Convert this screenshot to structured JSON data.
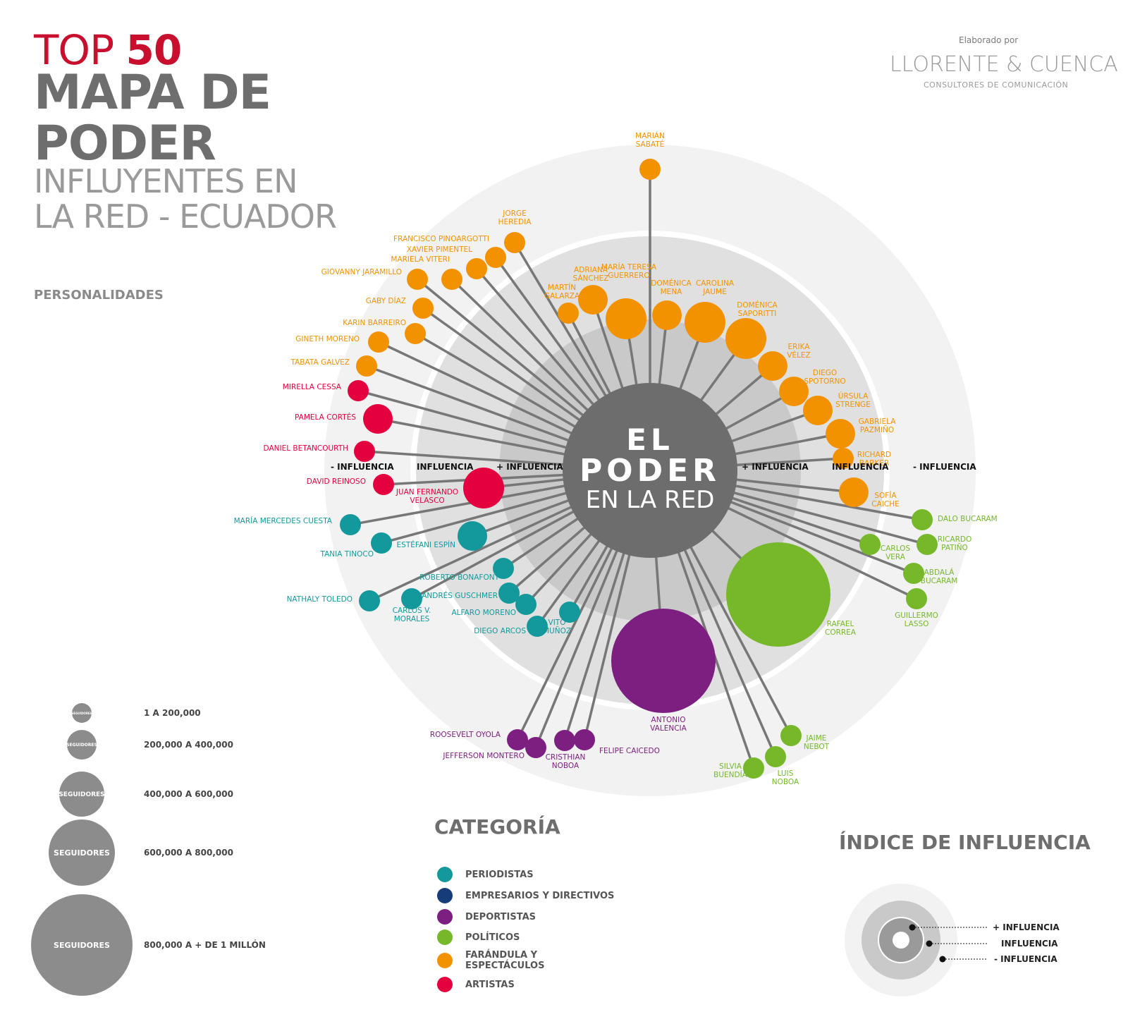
{
  "header": {
    "top_prefix": "TOP",
    "top_number": "50",
    "line1": "MAPA DE",
    "line2": "PODER",
    "line3": "INFLUYENTES EN",
    "line4": "LA RED - ECUADOR",
    "section": "PERSONALIDADES"
  },
  "brand": {
    "by": "Elaborado por",
    "name": "LLORENTE & CUENCA",
    "tagline": "CONSULTORES DE COMUNICACIÓN"
  },
  "center": {
    "line1": "EL",
    "line2": "PODER",
    "line3": "EN LA RED"
  },
  "ring_labels": {
    "left_outer": "- INFLUENCIA",
    "left_mid": "INFLUENCIA",
    "left_inner": "+ INFLUENCIA",
    "right_inner": "+ INFLUENCIA",
    "right_mid": "INFLUENCIA",
    "right_outer": "- INFLUENCIA"
  },
  "colors": {
    "periodistas": "#13999c",
    "empresarios": "#163d7a",
    "deportistas": "#7d1f80",
    "politicos": "#76b82a",
    "farandula": "#f39200",
    "artistas": "#e4003f",
    "ring_outer": "#f2f2f2",
    "ring_mid": "#e0e0e0",
    "ring_inner": "#c9c9c9",
    "center": "#6d6d6d",
    "line": "#777777"
  },
  "nodes": [
    {
      "name": "MARIÁN SABATÉ",
      "cat": "farandula",
      "size": 1
    },
    {
      "name": "JORGE HEREDIA",
      "cat": "farandula",
      "size": 1
    },
    {
      "name": "FRANCISCO PINOARGOTTI",
      "cat": "farandula",
      "size": 1
    },
    {
      "name": "XAVIER PIMENTEL",
      "cat": "farandula",
      "size": 1
    },
    {
      "name": "MARIELA VITERI",
      "cat": "farandula",
      "size": 1
    },
    {
      "name": "GIOVANNY JARAMILLO",
      "cat": "farandula",
      "size": 1
    },
    {
      "name": "GABY DÍAZ",
      "cat": "farandula",
      "size": 1
    },
    {
      "name": "KARIN BARREIRO",
      "cat": "farandula",
      "size": 1
    },
    {
      "name": "GINETH MORENO",
      "cat": "farandula",
      "size": 1
    },
    {
      "name": "TABATA GALVEZ",
      "cat": "farandula",
      "size": 1
    },
    {
      "name": "MARTÍN GALARZA",
      "cat": "farandula",
      "size": 1
    },
    {
      "name": "ADRIANA SÁNCHEZ",
      "cat": "farandula",
      "size": 2
    },
    {
      "name": "MARÍA TERESA GUERRERO",
      "cat": "farandula",
      "size": 3
    },
    {
      "name": "DOMÉNICA MENA",
      "cat": "farandula",
      "size": 2
    },
    {
      "name": "CAROLINA JAUME",
      "cat": "farandula",
      "size": 3
    },
    {
      "name": "DOMÉNICA SAPORITTI",
      "cat": "farandula",
      "size": 3
    },
    {
      "name": "ERIKA VÉLEZ",
      "cat": "farandula",
      "size": 2
    },
    {
      "name": "DIEGO SPOTORNO",
      "cat": "farandula",
      "size": 2
    },
    {
      "name": "ÚRSULA STRENGE",
      "cat": "farandula",
      "size": 2
    },
    {
      "name": "GABRIELA PAZMIÑO",
      "cat": "farandula",
      "size": 2
    },
    {
      "name": "RICHARD BARKER",
      "cat": "farandula",
      "size": 1
    },
    {
      "name": "SOFÍA CAICHE",
      "cat": "farandula",
      "size": 2
    },
    {
      "name": "MIRELLA CESSA",
      "cat": "artistas",
      "size": 1
    },
    {
      "name": "PAMELA CORTÉS",
      "cat": "artistas",
      "size": 2
    },
    {
      "name": "DANIEL BETANCOURTH",
      "cat": "artistas",
      "size": 1
    },
    {
      "name": "DAVID REINOSO",
      "cat": "artistas",
      "size": 1
    },
    {
      "name": "JUAN FERNANDO VELASCO",
      "cat": "artistas",
      "size": 3
    },
    {
      "name": "MARÍA MERCEDES CUESTA",
      "cat": "periodistas",
      "size": 1
    },
    {
      "name": "TANIA TINOCO",
      "cat": "periodistas",
      "size": 1
    },
    {
      "name": "ESTÉFANI ESPÍN",
      "cat": "periodistas",
      "size": 2
    },
    {
      "name": "ROBERTO BONAFONT",
      "cat": "periodistas",
      "size": 1
    },
    {
      "name": "ANDRÉS GUSCHMER",
      "cat": "periodistas",
      "size": 1
    },
    {
      "name": "ALFARO MORENO",
      "cat": "periodistas",
      "size": 1
    },
    {
      "name": "DIEGO ARCOS",
      "cat": "periodistas",
      "size": 1
    },
    {
      "name": "VITO MUÑOZ",
      "cat": "periodistas",
      "size": 1
    },
    {
      "name": "CARLOS V. MORALES",
      "cat": "periodistas",
      "size": 1
    },
    {
      "name": "NATHALY TOLEDO",
      "cat": "periodistas",
      "size": 1
    },
    {
      "name": "DALO BUCARAM",
      "cat": "politicos",
      "size": 1
    },
    {
      "name": "RICARDO PATIÑO",
      "cat": "politicos",
      "size": 1
    },
    {
      "name": "CARLOS VERA",
      "cat": "politicos",
      "size": 1
    },
    {
      "name": "ABDALÁ BUCARAM",
      "cat": "politicos",
      "size": 1
    },
    {
      "name": "GUILLERMO LASSO",
      "cat": "politicos",
      "size": 1
    },
    {
      "name": "RAFAEL CORREA",
      "cat": "politicos",
      "size": 5
    },
    {
      "name": "JAIME NEBOT",
      "cat": "politicos",
      "size": 1
    },
    {
      "name": "LUIS NOBOA",
      "cat": "politicos",
      "size": 1
    },
    {
      "name": "SILVIA BUENDÍA",
      "cat": "politicos",
      "size": 1
    },
    {
      "name": "ANTONIO VALENCIA",
      "cat": "deportistas",
      "size": 5
    },
    {
      "name": "ROOSEVELT OYOLA",
      "cat": "deportistas",
      "size": 1
    },
    {
      "name": "JEFFERSON MONTERO",
      "cat": "deportistas",
      "size": 1
    },
    {
      "name": "CRISTHIAN NOBOA",
      "cat": "deportistas",
      "size": 1
    },
    {
      "name": "FELIPE CAICEDO",
      "cat": "deportistas",
      "size": 1
    }
  ],
  "size_legend": {
    "bubble_small_text": "SEGUIDORES",
    "bubble_text": "SEGUIDORES",
    "items": [
      {
        "range": "1 A 200,000"
      },
      {
        "range": "200,000 A 400,000"
      },
      {
        "range": "400,000 A 600,000"
      },
      {
        "range": "600,000 A 800,000"
      },
      {
        "range": "800,000 A + DE 1 MILLÓN"
      }
    ]
  },
  "category_legend": {
    "title": "CATEGORÍA",
    "items": [
      {
        "label": "PERIODISTAS",
        "color": "#13999c"
      },
      {
        "label": "EMPRESARIOS Y DIRECTIVOS",
        "color": "#163d7a"
      },
      {
        "label": "DEPORTISTAS",
        "color": "#7d1f80"
      },
      {
        "label": "POLÍTICOS",
        "color": "#76b82a"
      },
      {
        "label": "FARÁNDULA Y\nESPECTÁCULOS",
        "color": "#f39200"
      },
      {
        "label": "ARTISTAS",
        "color": "#e4003f"
      }
    ]
  },
  "influence_index": {
    "title": "ÍNDICE DE INFLUENCIA",
    "more": "+ INFLUENCIA",
    "mid": "INFLUENCIA",
    "less": "- INFLUENCIA"
  }
}
